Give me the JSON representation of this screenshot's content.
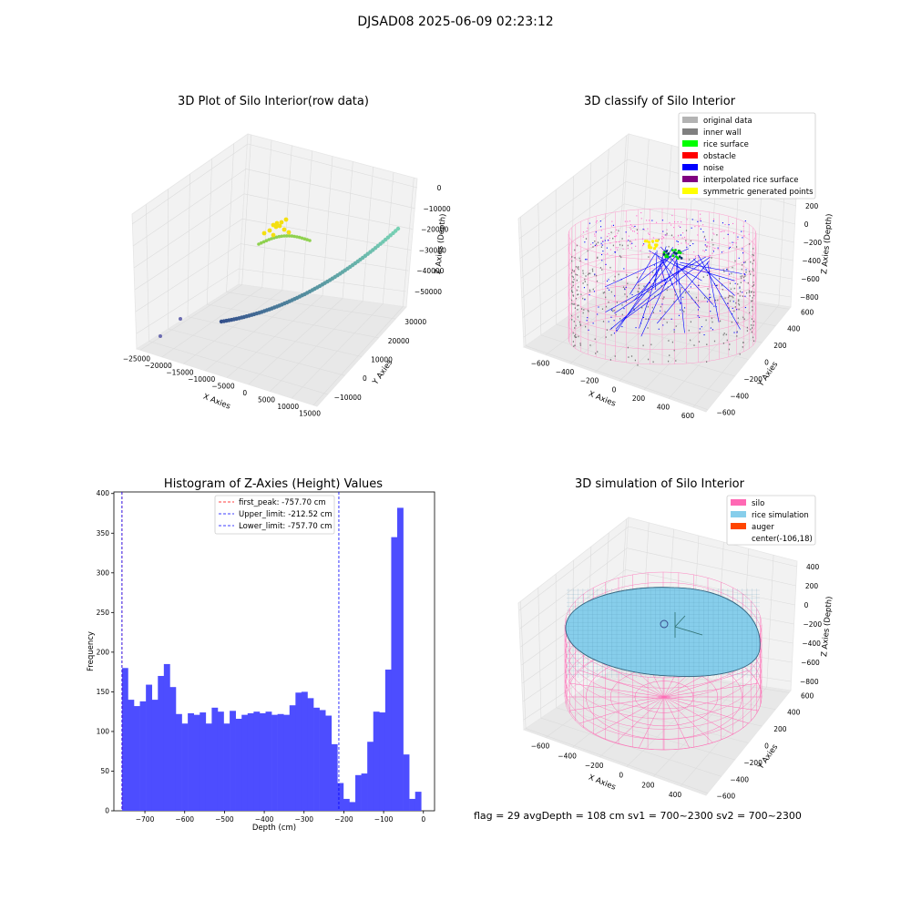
{
  "suptitle": "DJSAD08 2025-06-09 02:23:12",
  "footer": "flag = 29  avgDepth = 108 cm  sv1 = 700~2300  sv2 = 700~2300",
  "chart_data": [
    {
      "type": "scatter",
      "title": "3D Plot of Silo Interior(row data)",
      "xlabel": "X Axies",
      "ylabel": "Y Axies",
      "zlabel": "Z Axies (Depth)",
      "xticks": [
        "−25000",
        "−20000",
        "−15000",
        "−10000",
        "−5000",
        "0",
        "5000",
        "10000",
        "15000"
      ],
      "yticks": [
        "−10000",
        "0",
        "10000",
        "20000",
        "30000"
      ],
      "zticks": [
        "−50000",
        "−40000",
        "−30000",
        "−20000",
        "−10000",
        "0"
      ]
    },
    {
      "type": "scatter",
      "title": "3D classify of Silo Interior",
      "xlabel": "X Axies",
      "ylabel": "Y Axies",
      "zlabel": "Z Axies (Depth)",
      "xticks": [
        "−600",
        "−400",
        "−200",
        "0",
        "200",
        "400",
        "600"
      ],
      "yticks": [
        "−600",
        "−400",
        "−200",
        "0",
        "200",
        "400",
        "600"
      ],
      "zticks": [
        "−800",
        "−600",
        "−400",
        "−200",
        "0",
        "200"
      ],
      "legend": [
        {
          "label": "original data",
          "color": "#b3b3b3"
        },
        {
          "label": "inner wall",
          "color": "#808080"
        },
        {
          "label": "rice surface",
          "color": "#00ff00"
        },
        {
          "label": "obstacle",
          "color": "#ff0000"
        },
        {
          "label": "noise",
          "color": "#0000ff"
        },
        {
          "label": "interpolated rice surface",
          "color": "#800080"
        },
        {
          "label": "symmetric generated points",
          "color": "#ffff00"
        }
      ]
    },
    {
      "type": "bar",
      "title": "Histogram of Z-Axies (Height) Values",
      "xlabel": "Depth (cm)",
      "ylabel": "Frequency",
      "xlim": [
        -778,
        28
      ],
      "ylim": [
        0,
        402
      ],
      "xticks": [
        {
          "value": -700,
          "label": "−700"
        },
        {
          "value": -600,
          "label": "−600"
        },
        {
          "value": -500,
          "label": "−500"
        },
        {
          "value": -400,
          "label": "−400"
        },
        {
          "value": -300,
          "label": "−300"
        },
        {
          "value": -200,
          "label": "−200"
        },
        {
          "value": -100,
          "label": "−100"
        },
        {
          "value": 0,
          "label": "0"
        }
      ],
      "yticks": [
        {
          "value": 0,
          "label": "0"
        },
        {
          "value": 50,
          "label": "50"
        },
        {
          "value": 100,
          "label": "100"
        },
        {
          "value": 150,
          "label": "150"
        },
        {
          "value": 200,
          "label": "200"
        },
        {
          "value": 250,
          "label": "250"
        },
        {
          "value": 300,
          "label": "300"
        },
        {
          "value": 350,
          "label": "350"
        },
        {
          "value": 400,
          "label": "400"
        }
      ],
      "bin_start": -757.7,
      "bin_width": 15.04,
      "values": [
        180,
        140,
        132,
        138,
        159,
        140,
        170,
        185,
        156,
        122,
        110,
        123,
        121,
        124,
        110,
        130,
        125,
        110,
        126,
        116,
        121,
        123,
        125,
        123,
        125,
        121,
        122,
        121,
        133,
        149,
        150,
        142,
        130,
        127,
        120,
        84,
        35,
        15,
        11,
        45,
        47,
        87,
        125,
        124,
        178,
        345,
        382,
        71,
        15,
        24
      ],
      "lines": [
        {
          "label": "first_peak: -757.70 cm",
          "x": -757.7,
          "color": "#ff0000"
        },
        {
          "label": "Upper_limit: -212.52 cm",
          "x": -212.52,
          "color": "#0000ff"
        },
        {
          "label": "Lower_limit: -757.70 cm",
          "x": -757.7,
          "color": "#0000ff"
        }
      ]
    },
    {
      "type": "scatter",
      "title": "3D simulation of Silo Interior",
      "xlabel": "X Axies",
      "ylabel": "Y Axies",
      "zlabel": "Z Axies (Depth)",
      "xticks": [
        "−600",
        "−400",
        "−200",
        "0",
        "200",
        "400"
      ],
      "yticks": [
        "−600",
        "−400",
        "−200",
        "0",
        "200",
        "400",
        "600"
      ],
      "zticks": [
        "−800",
        "−600",
        "−400",
        "−200",
        "0",
        "200",
        "400"
      ],
      "legend": [
        {
          "label": "silo",
          "color": "#ff69b4"
        },
        {
          "label": "rice simulation",
          "color": "#87ceeb"
        },
        {
          "label": "auger",
          "color": "#ff4500"
        },
        {
          "label": "center(-106,18)",
          "color": ""
        }
      ]
    }
  ]
}
